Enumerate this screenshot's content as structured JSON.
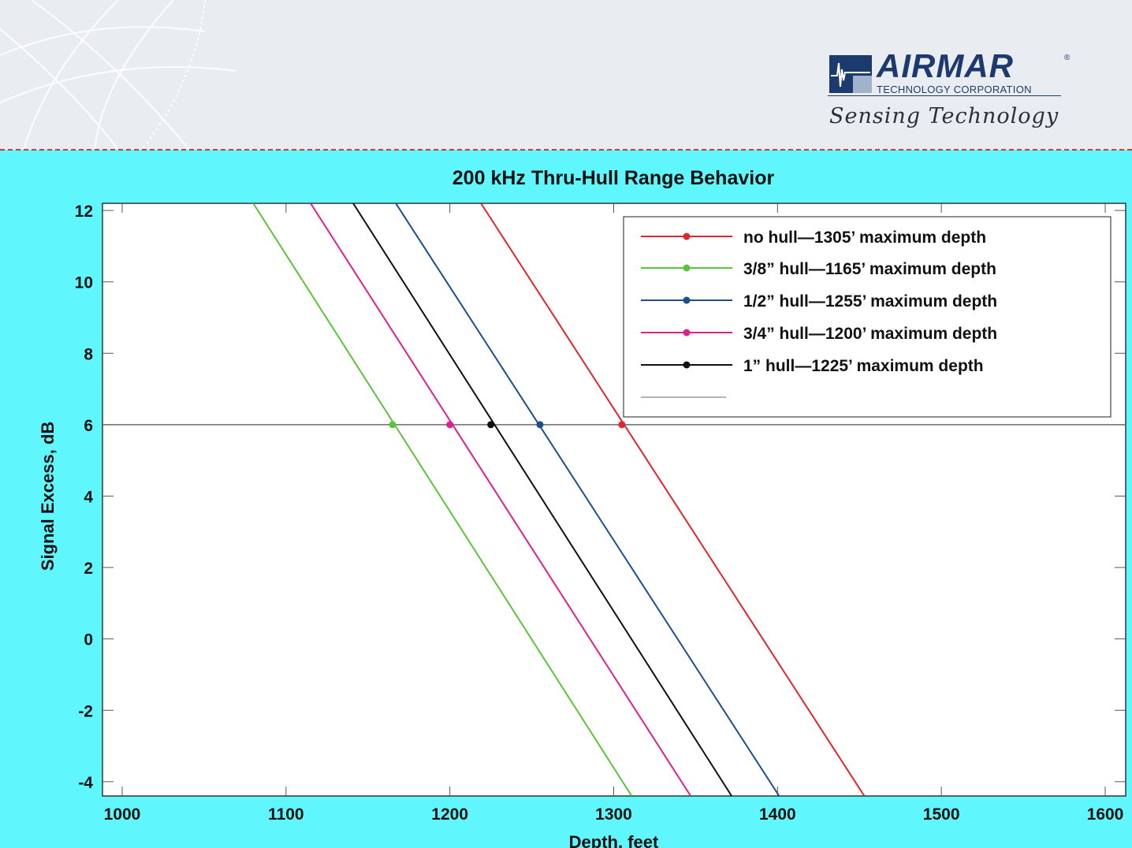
{
  "header": {
    "logo_word": "AIRMAR",
    "logo_registered": "®",
    "logo_subtitle": "TECHNOLOGY CORPORATION",
    "logo_tagline": "Sensing Technology"
  },
  "chart_data": {
    "type": "line",
    "title": "200 kHz Thru-Hull Range Behavior",
    "xlabel": "Depth, feet",
    "ylabel": "Signal Excess, dB",
    "xlim": [
      1000,
      1600
    ],
    "ylim": [
      -4.4,
      12.2
    ],
    "xticks": [
      1000,
      1100,
      1200,
      1300,
      1400,
      1500,
      1600
    ],
    "yticks": [
      -4,
      -2,
      0,
      2,
      4,
      6,
      8,
      10,
      12
    ],
    "reference_line_y": 6,
    "grid": false,
    "legend_position": "top-right",
    "series": [
      {
        "name": "no hull—1305’ maximum depth",
        "color": "#e3242b",
        "x": [
          1219,
          1453
        ],
        "y": [
          12.2,
          -4.4
        ],
        "marker": {
          "x": 1305,
          "y": 6
        }
      },
      {
        "name": "3/8” hull—1165’ maximum depth",
        "color": "#5bc43c",
        "x": [
          1080,
          1311
        ],
        "y": [
          12.2,
          -4.4
        ],
        "marker": {
          "x": 1165,
          "y": 6
        }
      },
      {
        "name": "1/2” hull—1255’ maximum depth",
        "color": "#1b4f8c",
        "x": [
          1167,
          1401
        ],
        "y": [
          12.2,
          -4.4
        ],
        "marker": {
          "x": 1255,
          "y": 6
        }
      },
      {
        "name": "3/4” hull—1200’ maximum depth",
        "color": "#e0208f",
        "x": [
          1115,
          1347
        ],
        "y": [
          12.2,
          -4.4
        ],
        "marker": {
          "x": 1200,
          "y": 6
        }
      },
      {
        "name": "1” hull—1225’ maximum depth",
        "color": "#111111",
        "x": [
          1141,
          1372
        ],
        "y": [
          12.2,
          -4.4
        ],
        "marker": {
          "x": 1225,
          "y": 6
        }
      }
    ]
  }
}
